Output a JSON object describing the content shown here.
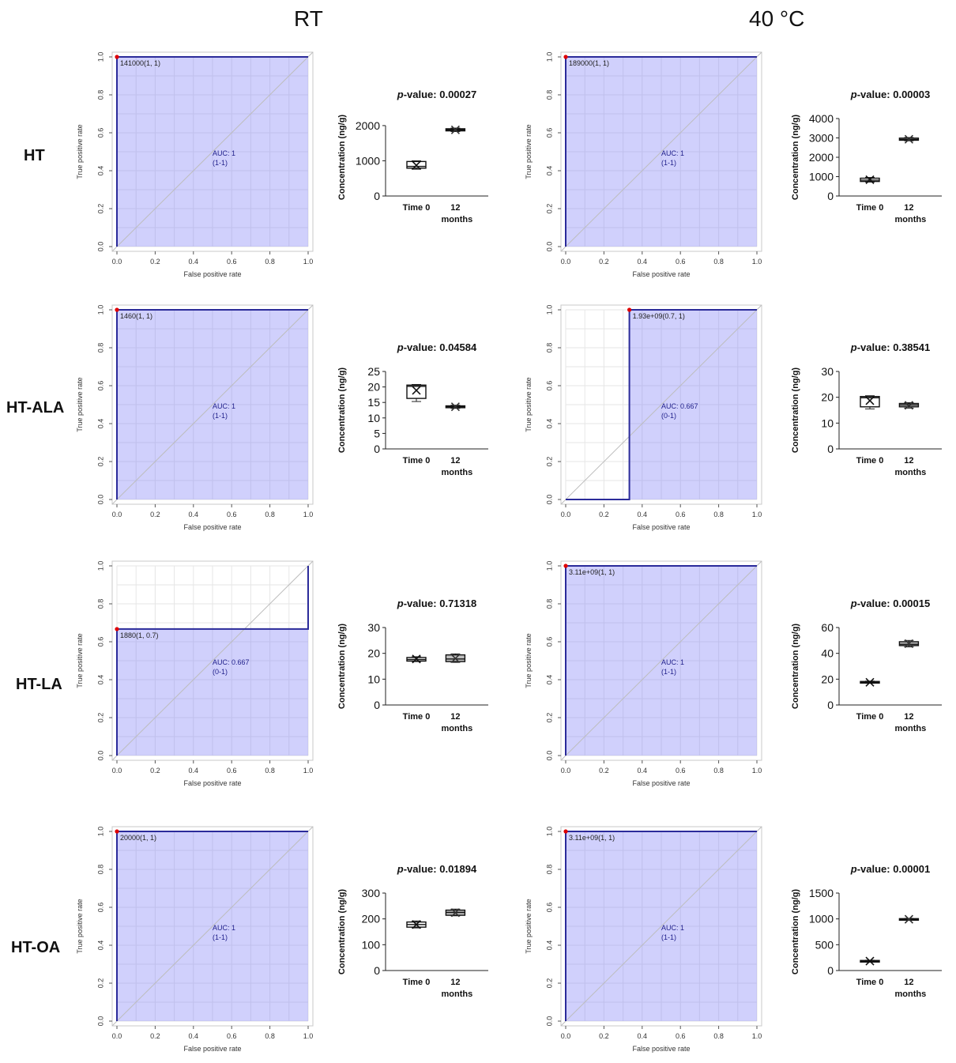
{
  "columns": [
    "RT",
    "40 °C"
  ],
  "rows": [
    "HT",
    "HT-ALA",
    "HT-LA",
    "HT-OA"
  ],
  "labels": {
    "roc_xlabel": "False positive rate",
    "roc_ylabel": "True positive rate",
    "box_ylabel": "Concentration (ng/g)",
    "pvalue_prefix": "p",
    "pvalue_suffix": "-value: ",
    "box_categories": [
      "Time 0",
      "12",
      "months"
    ]
  },
  "roc_ticks": [
    "0.0",
    "0.2",
    "0.4",
    "0.6",
    "0.8",
    "1.0"
  ],
  "chart_data": [
    {
      "type": "line",
      "panel": "roc",
      "row": "HT",
      "column": "RT",
      "x": [
        0,
        0,
        1
      ],
      "y": [
        0,
        1,
        1
      ],
      "auc": "AUC: 1",
      "ci": "(1-1)",
      "threshold_label": "141000(1, 1)",
      "threshold_point": [
        0,
        1
      ],
      "xlabel": "False positive rate",
      "ylabel": "True positive rate",
      "xlim": [
        0,
        1
      ],
      "ylim": [
        0,
        1
      ]
    },
    {
      "type": "box",
      "panel": "box",
      "row": "HT",
      "column": "RT",
      "pvalue": "0.00027",
      "yticks": [
        0,
        1000,
        2000
      ],
      "ylim": [
        0,
        2200
      ],
      "categories": [
        "Time 0",
        "12 months"
      ],
      "boxes": [
        {
          "min": 760,
          "q1": 790,
          "median": 840,
          "q3": 980,
          "max": 1000,
          "mean": 870,
          "fill": "#ffffff"
        },
        {
          "min": 1830,
          "q1": 1850,
          "median": 1880,
          "q3": 1910,
          "max": 1930,
          "mean": 1880,
          "fill": "#bfbfbf"
        }
      ],
      "ylabel": "Concentration (ng/g)"
    },
    {
      "type": "line",
      "panel": "roc",
      "row": "HT",
      "column": "40 °C",
      "x": [
        0,
        0,
        1
      ],
      "y": [
        0,
        1,
        1
      ],
      "auc": "AUC: 1",
      "ci": "(1-1)",
      "threshold_label": "189000(1, 1)",
      "threshold_point": [
        0,
        1
      ],
      "xlabel": "False positive rate",
      "ylabel": "True positive rate",
      "xlim": [
        0,
        1
      ],
      "ylim": [
        0,
        1
      ]
    },
    {
      "type": "box",
      "panel": "box",
      "row": "HT",
      "column": "40 °C",
      "pvalue": "0.00003",
      "yticks": [
        0,
        1000,
        2000,
        3000,
        4000
      ],
      "ylim": [
        0,
        4000
      ],
      "categories": [
        "Time 0",
        "12 months"
      ],
      "boxes": [
        {
          "min": 720,
          "q1": 750,
          "median": 820,
          "q3": 920,
          "max": 960,
          "mean": 840,
          "fill": "#ffffff"
        },
        {
          "min": 2850,
          "q1": 2880,
          "median": 2920,
          "q3": 2990,
          "max": 3020,
          "mean": 2930,
          "fill": "#bfbfbf"
        }
      ],
      "ylabel": "Concentration (ng/g)"
    },
    {
      "type": "line",
      "panel": "roc",
      "row": "HT-ALA",
      "column": "RT",
      "x": [
        0,
        0,
        1
      ],
      "y": [
        0,
        1,
        1
      ],
      "auc": "AUC: 1",
      "ci": "(1-1)",
      "threshold_label": "1460(1, 1)",
      "threshold_point": [
        0,
        1
      ],
      "xlabel": "False positive rate",
      "ylabel": "True positive rate",
      "xlim": [
        0,
        1
      ],
      "ylim": [
        0,
        1
      ]
    },
    {
      "type": "box",
      "panel": "box",
      "row": "HT-ALA",
      "column": "RT",
      "pvalue": "0.04584",
      "yticks": [
        0,
        5,
        10,
        15,
        20,
        25
      ],
      "ylim": [
        0,
        25
      ],
      "categories": [
        "Time 0",
        "12 months"
      ],
      "boxes": [
        {
          "min": 15.3,
          "q1": 16.3,
          "median": 20.2,
          "q3": 20.6,
          "max": 20.8,
          "mean": 18.9,
          "fill": "#ffffff"
        },
        {
          "min": 13.1,
          "q1": 13.3,
          "median": 13.6,
          "q3": 13.9,
          "max": 14.1,
          "mean": 13.6,
          "fill": "#bfbfbf"
        }
      ],
      "ylabel": "Concentration (ng/g)"
    },
    {
      "type": "line",
      "panel": "roc",
      "row": "HT-ALA",
      "column": "40 °C",
      "x": [
        0,
        0.333,
        0.333,
        1
      ],
      "y": [
        0,
        0,
        1,
        1
      ],
      "auc": "AUC: 0.667",
      "ci": "(0-1)",
      "threshold_label": "1.93e+09(0.7, 1)",
      "threshold_point": [
        0.333,
        1
      ],
      "xlabel": "False positive rate",
      "ylabel": "True positive rate",
      "xlim": [
        0,
        1
      ],
      "ylim": [
        0,
        1
      ]
    },
    {
      "type": "box",
      "panel": "box",
      "row": "HT-ALA",
      "column": "40 °C",
      "pvalue": "0.38541",
      "yticks": [
        0,
        10,
        20,
        30
      ],
      "ylim": [
        0,
        30
      ],
      "categories": [
        "Time 0",
        "12 months"
      ],
      "boxes": [
        {
          "min": 15.5,
          "q1": 16.3,
          "median": 19.8,
          "q3": 20.3,
          "max": 20.6,
          "mean": 18.7,
          "fill": "#ffffff"
        },
        {
          "min": 15.8,
          "q1": 16.3,
          "median": 17.0,
          "q3": 17.6,
          "max": 17.9,
          "mean": 16.9,
          "fill": "#bfbfbf"
        }
      ],
      "ylabel": "Concentration (ng/g)"
    },
    {
      "type": "line",
      "panel": "roc",
      "row": "HT-LA",
      "column": "RT",
      "x": [
        0,
        0,
        1,
        1
      ],
      "y": [
        0,
        0.667,
        0.667,
        1
      ],
      "auc": "AUC: 0.667",
      "ci": "(0-1)",
      "threshold_label": "1880(1, 0.7)",
      "threshold_point": [
        0,
        0.667
      ],
      "xlabel": "False positive rate",
      "ylabel": "True positive rate",
      "xlim": [
        0,
        1
      ],
      "ylim": [
        0,
        1
      ]
    },
    {
      "type": "box",
      "panel": "box",
      "row": "HT-LA",
      "column": "RT",
      "pvalue": "0.71318",
      "yticks": [
        0,
        10,
        20,
        30
      ],
      "ylim": [
        0,
        30
      ],
      "categories": [
        "Time 0",
        "12 months"
      ],
      "boxes": [
        {
          "min": 16.8,
          "q1": 17.0,
          "median": 17.6,
          "q3": 18.4,
          "max": 18.7,
          "mean": 17.8,
          "fill": "#ffffff"
        },
        {
          "min": 16.5,
          "q1": 16.8,
          "median": 17.8,
          "q3": 19.4,
          "max": 19.8,
          "mean": 18.0,
          "fill": "#bfbfbf"
        }
      ],
      "ylabel": "Concentration (ng/g)"
    },
    {
      "type": "line",
      "panel": "roc",
      "row": "HT-LA",
      "column": "40 °C",
      "x": [
        0,
        0,
        1
      ],
      "y": [
        0,
        1,
        1
      ],
      "auc": "AUC: 1",
      "ci": "(1-1)",
      "threshold_label": "3.11e+09(1, 1)",
      "threshold_point": [
        0,
        1
      ],
      "xlabel": "False positive rate",
      "ylabel": "True positive rate",
      "xlim": [
        0,
        1
      ],
      "ylim": [
        0,
        1
      ]
    },
    {
      "type": "box",
      "panel": "box",
      "row": "HT-LA",
      "column": "40 °C",
      "pvalue": "0.00015",
      "yticks": [
        0,
        20,
        40,
        60
      ],
      "ylim": [
        0,
        60
      ],
      "categories": [
        "Time 0",
        "12 months"
      ],
      "boxes": [
        {
          "min": 16.8,
          "q1": 17.0,
          "median": 17.5,
          "q3": 18.2,
          "max": 18.5,
          "mean": 17.6,
          "fill": "#ffffff"
        },
        {
          "min": 45.0,
          "q1": 46.0,
          "median": 47.0,
          "q3": 49.0,
          "max": 50.0,
          "mean": 47.5,
          "fill": "#bfbfbf"
        }
      ],
      "ylabel": "Concentration (ng/g)"
    },
    {
      "type": "line",
      "panel": "roc",
      "row": "HT-OA",
      "column": "RT",
      "x": [
        0,
        0,
        1
      ],
      "y": [
        0,
        1,
        1
      ],
      "auc": "AUC: 1",
      "ci": "(1-1)",
      "threshold_label": "20000(1, 1)",
      "threshold_point": [
        0,
        1
      ],
      "xlabel": "False positive rate",
      "ylabel": "True positive rate",
      "xlim": [
        0,
        1
      ],
      "ylim": [
        0,
        1
      ]
    },
    {
      "type": "box",
      "panel": "box",
      "row": "HT-OA",
      "column": "RT",
      "pvalue": "0.01894",
      "yticks": [
        0,
        100,
        200,
        300
      ],
      "ylim": [
        0,
        300
      ],
      "categories": [
        "Time 0",
        "12 months"
      ],
      "boxes": [
        {
          "min": 165,
          "q1": 168,
          "median": 178,
          "q3": 188,
          "max": 192,
          "mean": 178,
          "fill": "#ffffff"
        },
        {
          "min": 212,
          "q1": 214,
          "median": 225,
          "q3": 234,
          "max": 238,
          "mean": 224,
          "fill": "#bfbfbf"
        }
      ],
      "ylabel": "Concentration (ng/g)"
    },
    {
      "type": "line",
      "panel": "roc",
      "row": "HT-OA",
      "column": "40 °C",
      "x": [
        0,
        0,
        1
      ],
      "y": [
        0,
        1,
        1
      ],
      "auc": "AUC: 1",
      "ci": "(1-1)",
      "threshold_label": "3.11e+09(1, 1)",
      "threshold_point": [
        0,
        1
      ],
      "xlabel": "False positive rate",
      "ylabel": "True positive rate",
      "xlim": [
        0,
        1
      ],
      "ylim": [
        0,
        1
      ]
    },
    {
      "type": "box",
      "panel": "box",
      "row": "HT-OA",
      "column": "40 °C",
      "pvalue": "0.00001",
      "yticks": [
        0,
        500,
        1000,
        1500
      ],
      "ylim": [
        0,
        1500
      ],
      "categories": [
        "Time 0",
        "12 months"
      ],
      "boxes": [
        {
          "min": 165,
          "q1": 170,
          "median": 180,
          "q3": 195,
          "max": 200,
          "mean": 182,
          "fill": "#ffffff"
        },
        {
          "min": 975,
          "q1": 980,
          "median": 990,
          "q3": 1005,
          "max": 1010,
          "mean": 993,
          "fill": "#bfbfbf"
        }
      ],
      "ylabel": "Concentration (ng/g)"
    }
  ]
}
